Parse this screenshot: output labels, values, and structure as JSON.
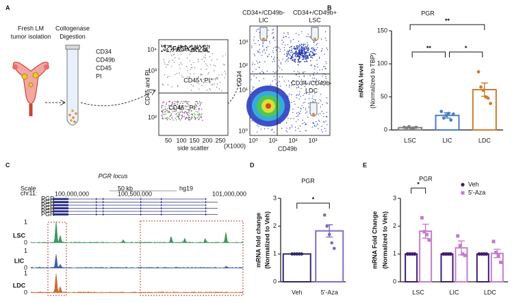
{
  "figure": {
    "panel_a": {
      "label": "A",
      "isolation": [
        "Fresh LM",
        "tumor isolation"
      ],
      "digestion": [
        "Collogenase",
        "Digestion"
      ],
      "markers": [
        "CD34",
        "CD49b",
        "CD45",
        "PI"
      ],
      "facs": {
        "title": "FACS",
        "y_label": "CD45 and PI",
        "x_label": "side scatter",
        "x_unit": "(X1000)",
        "x_ticks": [
          "50",
          "100",
          "150",
          "200",
          "250"
        ],
        "y_ticks": [
          "10⁴",
          "10³",
          "10²"
        ],
        "gates": [
          "CD45⁺;PI⁺",
          "CD45⁻;PI⁻"
        ]
      },
      "sort": {
        "y_label": "CD34",
        "x_label": "CD49b",
        "x_ticks": [
          "10⁰",
          "10¹",
          "10²",
          "10³"
        ],
        "y_ticks": [
          "10³",
          "10²",
          "10¹",
          "10⁰"
        ],
        "quadrants": [
          {
            "gate": "CD34+/CD49b-",
            "name": "LIC",
            "color": "#3b5bb5"
          },
          {
            "gate": "CD34+/CD49b+",
            "name": "LSC",
            "color": "#3a9a4e"
          },
          {
            "gate": "CD34-/CD49b-",
            "name": "LDC",
            "color": "#d5402c"
          }
        ]
      }
    },
    "panel_c": {
      "label": "C",
      "title": "PGR locus",
      "browser": {
        "scale": "Scale",
        "chrom": "chr11:",
        "scale_bar": "50 kb",
        "assembly": "hg19",
        "coords": [
          "100,000,000",
          "100,500,000",
          "101,000,000"
        ],
        "gene": "PGR"
      },
      "track_range": [
        "1",
        "0"
      ],
      "tracks": [
        {
          "name": "LSC",
          "color": "#3f9960"
        },
        {
          "name": "LIC",
          "color": "#3c5fa6"
        },
        {
          "name": "LDC",
          "color": "#d0672e"
        }
      ]
    },
    "panel_labels": {
      "b": "B",
      "d": "D",
      "e": "E"
    }
  },
  "chart_data": [
    {
      "type": "bar",
      "title": "PGR",
      "y_label": "mRNA level",
      "y_sublabel": "(Normalized to TBP)",
      "categories": [
        "LSC",
        "LIC",
        "LDC"
      ],
      "values": [
        3.5,
        22,
        61
      ],
      "errors": [
        0.8,
        4,
        10
      ],
      "points": [
        [
          4,
          3,
          5,
          2,
          3,
          4
        ],
        [
          28,
          18,
          22,
          25,
          15,
          24
        ],
        [
          88,
          65,
          60,
          50,
          48,
          40
        ]
      ],
      "colors": [
        "#808080",
        "#4a7cc7",
        "#cf7a2e"
      ],
      "ylim": [
        0,
        150
      ],
      "yticks": [
        0,
        50,
        100,
        150
      ],
      "significance": [
        {
          "between": [
            "LSC",
            "LDC"
          ],
          "label": "**"
        },
        {
          "between": [
            "LSC",
            "LIC"
          ],
          "label": "**"
        },
        {
          "between": [
            "LIC",
            "LDC"
          ],
          "label": "*"
        }
      ]
    },
    {
      "type": "bar",
      "title": "PGR",
      "y_label": "mRNA fold change",
      "y_sublabel": "(Normalized to Veh)",
      "categories": [
        "Veh",
        "5'-Aza"
      ],
      "values": [
        1,
        1.83
      ],
      "errors": [
        0,
        0.22
      ],
      "points": [
        [
          1,
          1,
          1,
          1,
          1
        ],
        [
          2.4,
          2.0,
          1.7,
          1.4,
          1.2
        ]
      ],
      "colors": [
        "#2d2a6b",
        "#7a6fc4"
      ],
      "ylim": [
        0,
        3
      ],
      "yticks": [
        0,
        1,
        2,
        3
      ],
      "significance": [
        {
          "between": [
            "Veh",
            "5'-Aza"
          ],
          "label": "*"
        }
      ]
    },
    {
      "type": "grouped_bar",
      "title": "PGR",
      "y_label": "mRNA Fold Change",
      "y_sublabel": "(Normalized to Veh)",
      "categories": [
        "LSC",
        "LIC",
        "LDC"
      ],
      "series": [
        {
          "name": "Veh",
          "color": "#3d1c70",
          "marker": "circle",
          "values": [
            1,
            1,
            1
          ],
          "errors": [
            0.02,
            0.02,
            0.02
          ],
          "points": [
            [
              1,
              1,
              1,
              1
            ],
            [
              1,
              1,
              1,
              1
            ],
            [
              1,
              1,
              1,
              1
            ]
          ]
        },
        {
          "name": "5'-Aza",
          "color": "#c47ccc",
          "marker": "square",
          "values": [
            1.82,
            1.22,
            1.02
          ],
          "errors": [
            0.25,
            0.25,
            0.15
          ],
          "points": [
            [
              2.3,
              1.8,
              1.7,
              1.5
            ],
            [
              1.65,
              1.3,
              1.0,
              0.95
            ],
            [
              1.45,
              1.05,
              0.95,
              0.7
            ]
          ]
        }
      ],
      "ylim": [
        0,
        3
      ],
      "yticks": [
        0,
        1,
        2,
        3
      ],
      "significance": [
        {
          "between": [
            "Veh",
            "5'-Aza"
          ],
          "category": "LSC",
          "label": "*"
        }
      ]
    }
  ]
}
